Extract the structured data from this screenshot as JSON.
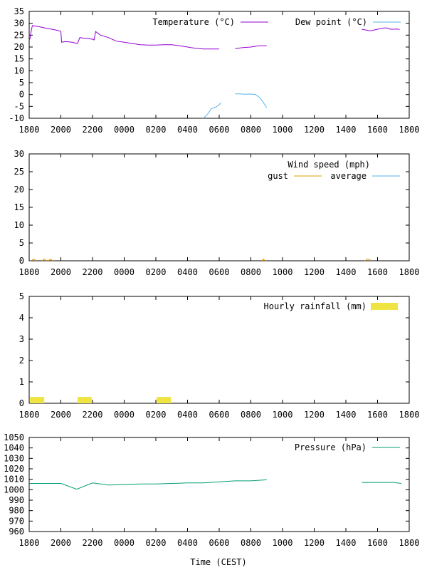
{
  "xlabel": "Time (CEST)",
  "x_ticks": [
    "1800",
    "2000",
    "2200",
    "0000",
    "0200",
    "0400",
    "0600",
    "0800",
    "1000",
    "1200",
    "1400",
    "1600",
    "1800"
  ],
  "colors": {
    "temperature": "#9400d3",
    "dewpoint": "#56b4e9",
    "gust": "#e69f00",
    "average": "#56b4e9",
    "rain": "#f0e442",
    "pressure": "#009e73",
    "axis": "#000000"
  },
  "chart_data": [
    {
      "type": "line",
      "x_unit": "hours since 18:00",
      "xlim": [
        0,
        24
      ],
      "ylim": [
        -10,
        35
      ],
      "y_ticks": [
        "-10",
        "-5",
        "0",
        "5",
        "10",
        "15",
        "20",
        "25",
        "30",
        "35"
      ],
      "grid": false,
      "legend_position": "top-right",
      "series": [
        {
          "name": "Temperature (°C)",
          "segments": [
            [
              [
                0,
                23
              ],
              [
                0.05,
                23.5
              ],
              [
                0.1,
                25.5
              ],
              [
                0.15,
                27.5
              ],
              [
                0.2,
                29
              ],
              [
                0.5,
                28.7
              ],
              [
                0.8,
                28.3
              ],
              [
                1.2,
                27.7
              ],
              [
                1.5,
                27.4
              ],
              [
                1.8,
                27
              ],
              [
                2,
                26.6
              ],
              [
                2.05,
                22
              ],
              [
                2.3,
                22.3
              ],
              [
                2.7,
                22
              ],
              [
                3.05,
                21.5
              ],
              [
                3.2,
                24
              ],
              [
                3.5,
                23.7
              ],
              [
                4,
                23.3
              ],
              [
                4.1,
                23
              ],
              [
                4.2,
                26.5
              ],
              [
                4.5,
                25
              ],
              [
                5,
                24
              ],
              [
                5.5,
                22.5
              ],
              [
                6,
                22
              ],
              [
                6.5,
                21.5
              ],
              [
                7,
                21
              ],
              [
                7.5,
                20.8
              ],
              [
                8,
                20.8
              ],
              [
                8.5,
                21
              ],
              [
                9,
                21
              ],
              [
                9.5,
                20.5
              ],
              [
                10,
                20
              ],
              [
                10.5,
                19.5
              ],
              [
                11,
                19.2
              ],
              [
                12,
                19.2
              ]
            ],
            [
              [
                13,
                19.3
              ],
              [
                13.5,
                19.8
              ],
              [
                14,
                20
              ],
              [
                14.5,
                20.5
              ],
              [
                15,
                20.5
              ]
            ],
            [
              [
                21,
                27.5
              ],
              [
                21.4,
                27
              ],
              [
                21.6,
                26.8
              ],
              [
                21.8,
                27.2
              ],
              [
                22,
                27.5
              ],
              [
                22.4,
                28
              ],
              [
                22.6,
                28
              ],
              [
                22.8,
                27.5
              ],
              [
                23,
                27.5
              ],
              [
                23.2,
                27.6
              ],
              [
                23.4,
                27.4
              ]
            ]
          ]
        },
        {
          "name": "Dew point (°C)",
          "segments": [
            [
              [
                11,
                -10
              ],
              [
                11.3,
                -8
              ],
              [
                11.5,
                -6
              ],
              [
                11.8,
                -5.2
              ],
              [
                12,
                -4.3
              ],
              [
                12.1,
                -3.5
              ]
            ],
            [
              [
                13,
                0.3
              ],
              [
                13.3,
                0.3
              ],
              [
                13.6,
                0.1
              ],
              [
                14,
                0.2
              ],
              [
                14.3,
                0
              ],
              [
                14.6,
                -1.5
              ],
              [
                14.8,
                -3.5
              ],
              [
                15,
                -5.5
              ]
            ]
          ]
        }
      ]
    },
    {
      "type": "line",
      "title": "Wind speed (mph)",
      "x_unit": "hours since 18:00",
      "xlim": [
        0,
        24
      ],
      "ylim": [
        0,
        30
      ],
      "y_ticks": [
        "0",
        "5",
        "10",
        "15",
        "20",
        "25",
        "30"
      ],
      "grid": false,
      "legend_position": "top-right",
      "series": [
        {
          "name": "gust",
          "segments": [
            [
              [
                0.1,
                0
              ],
              [
                0.3,
                0.5
              ],
              [
                0.45,
                0
              ]
            ],
            [
              [
                0.8,
                0
              ],
              [
                0.95,
                0.5
              ],
              [
                1.1,
                0
              ]
            ],
            [
              [
                1.2,
                0
              ],
              [
                1.35,
                0.5
              ],
              [
                1.5,
                0
              ]
            ],
            [
              [
                14.7,
                0
              ],
              [
                14.8,
                0.5
              ],
              [
                14.9,
                0
              ]
            ],
            [
              [
                21.2,
                0
              ],
              [
                21.35,
                0.5
              ],
              [
                21.55,
                0.3
              ]
            ]
          ]
        },
        {
          "name": "average",
          "segments": []
        }
      ]
    },
    {
      "type": "bar",
      "x_unit": "hours since 18:00",
      "xlim": [
        0,
        24
      ],
      "ylim": [
        0,
        5
      ],
      "y_ticks": [
        "0",
        "1",
        "2",
        "3",
        "4",
        "5"
      ],
      "grid": false,
      "legend_position": "top-right",
      "series": [
        {
          "name": "Hourly rainfall (mm)",
          "bars": [
            {
              "x": 0.5,
              "value": 0.3
            },
            {
              "x": 3.5,
              "value": 0.3
            },
            {
              "x": 8.5,
              "value": 0.3
            }
          ]
        }
      ]
    },
    {
      "type": "line",
      "x_unit": "hours since 18:00",
      "xlim": [
        0,
        24
      ],
      "ylim": [
        960,
        1050
      ],
      "y_ticks": [
        "960",
        "970",
        "980",
        "990",
        "1000",
        "1010",
        "1020",
        "1030",
        "1040",
        "1050"
      ],
      "grid": false,
      "legend_position": "top-right",
      "series": [
        {
          "name": "Pressure (hPa)",
          "segments": [
            [
              [
                0,
                1006
              ],
              [
                1,
                1006
              ],
              [
                2,
                1006
              ],
              [
                3,
                1000.5
              ],
              [
                4,
                1006.5
              ],
              [
                5,
                1004.5
              ],
              [
                6,
                1005
              ],
              [
                7,
                1005.5
              ],
              [
                8,
                1005.5
              ],
              [
                9,
                1006
              ],
              [
                10,
                1006.5
              ],
              [
                11,
                1006.5
              ],
              [
                12,
                1007.5
              ],
              [
                13,
                1008.5
              ],
              [
                14,
                1008.5
              ],
              [
                15,
                1009.5
              ]
            ],
            [
              [
                21,
                1007
              ],
              [
                22,
                1007
              ],
              [
                23,
                1007
              ],
              [
                23.5,
                1006
              ]
            ]
          ]
        }
      ]
    }
  ]
}
